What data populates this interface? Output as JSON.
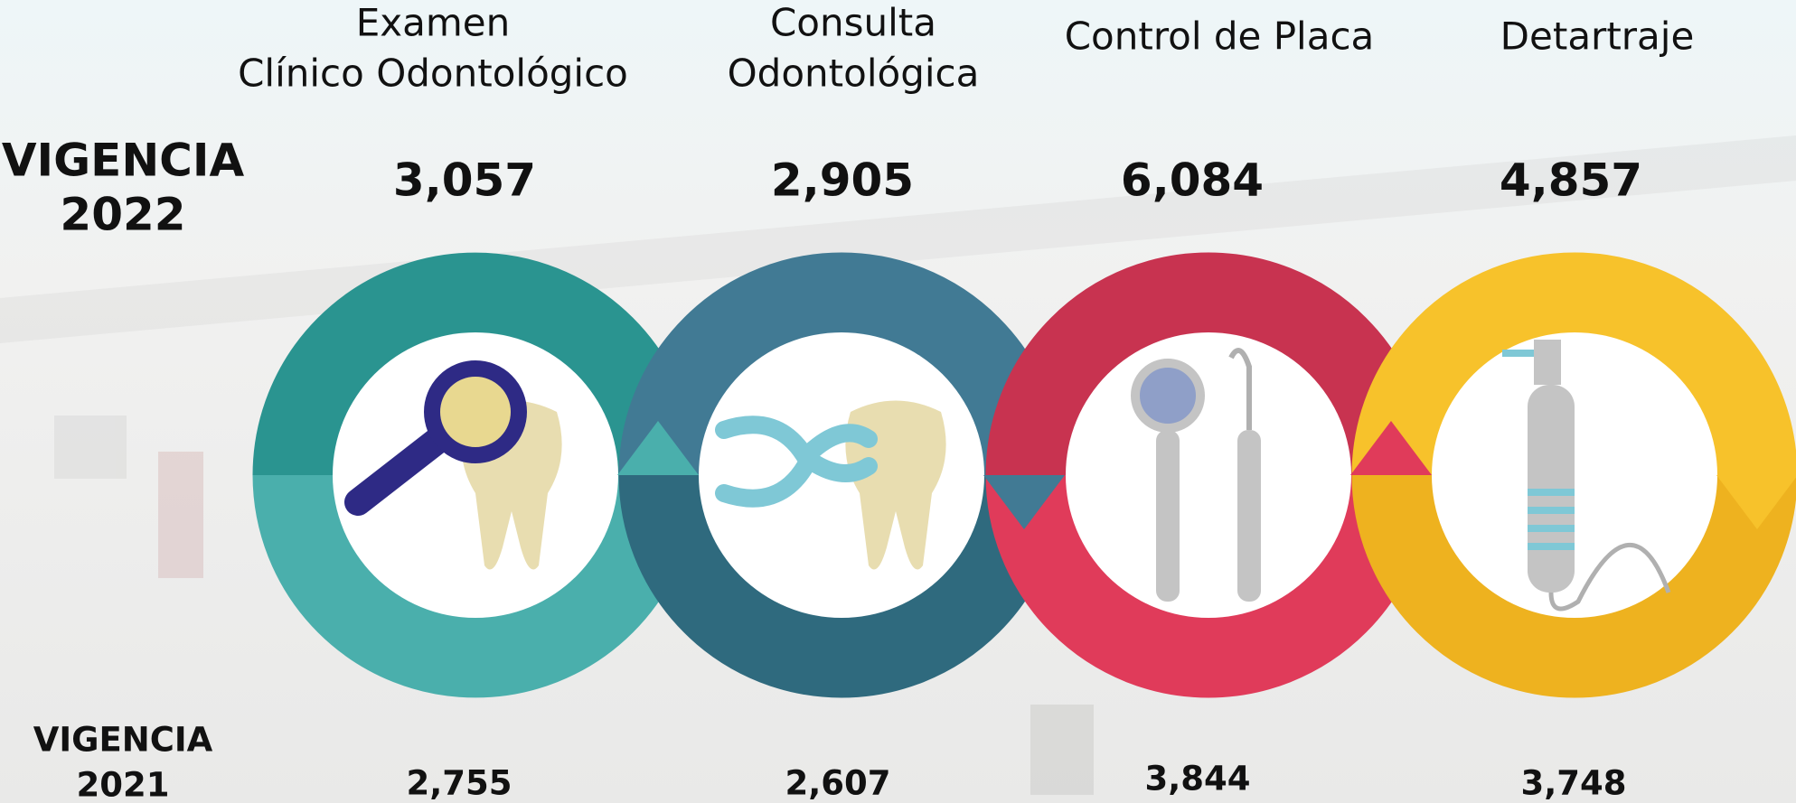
{
  "header": {
    "vigencia_2022": [
      "VIGENCIA",
      "2022"
    ],
    "vigencia_2021": [
      "VIGENCIA",
      "2021"
    ]
  },
  "items": [
    {
      "label": [
        "Examen",
        "Clínico Odontológico"
      ],
      "value_2022": "3,057",
      "value_2021": "2,755"
    },
    {
      "label": [
        "Consulta",
        "Odontológica"
      ],
      "value_2022": "2,905",
      "value_2021": "2,607"
    },
    {
      "label": [
        "Control de Placa"
      ],
      "value_2022": "6,084",
      "value_2021": "3,844"
    },
    {
      "label": [
        "Detartraje"
      ],
      "value_2022": "4,857",
      "value_2021": "3,748"
    }
  ]
}
